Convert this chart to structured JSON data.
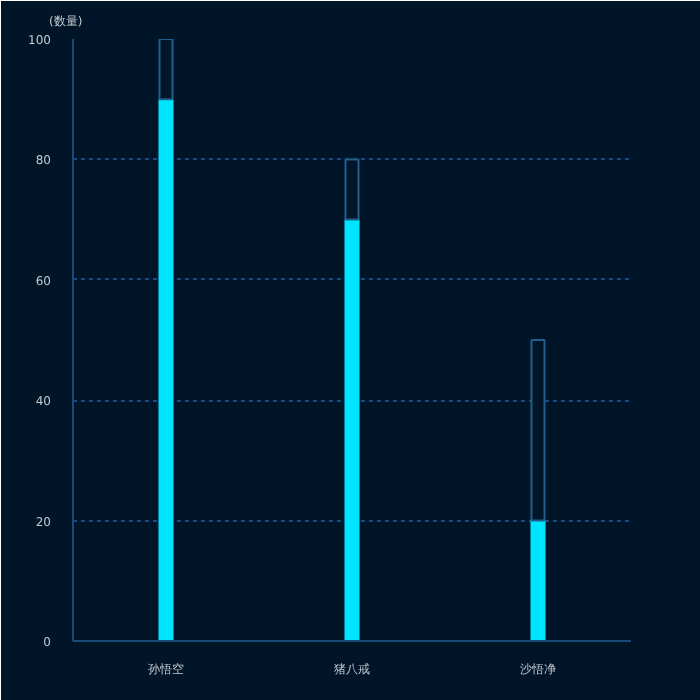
{
  "chart_data": {
    "type": "bar",
    "ylabel": "(数量)",
    "categories": [
      "孙悟空",
      "猪八戒",
      "沙悟净"
    ],
    "stacked": true,
    "series": [
      {
        "color": "#00e5ff",
        "values": [
          90,
          70,
          20
        ]
      },
      {
        "color": "#1e5f8c",
        "values": [
          10,
          10,
          30
        ]
      }
    ],
    "ylim": [
      0,
      100
    ],
    "yticks": [
      0,
      20,
      40,
      60,
      80,
      100
    ],
    "grid": "y"
  }
}
